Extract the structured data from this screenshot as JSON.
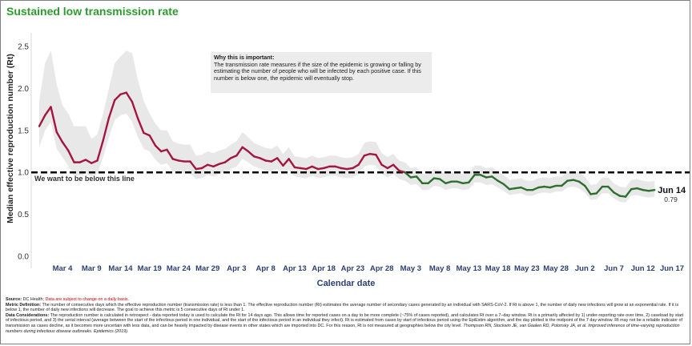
{
  "title": "Sustained low transmission rate",
  "callout": {
    "heading": "Why this is important:",
    "body": "The transmission rate measures if the size of the epidemic is growing or falling by estimating the number of people who will be infected by each positive case. If this number is below one, the epidemic will eventually stop."
  },
  "chart_data": {
    "type": "line",
    "title": "Sustained low transmission rate",
    "xlabel": "Calendar date",
    "ylabel": "Median effective reproduction number (Rt)",
    "ylim": [
      0,
      2.6
    ],
    "yticks": [
      "0.0",
      "0.5",
      "1.0",
      "1.5",
      "2.0",
      "2.5"
    ],
    "xticks": [
      "Mar 4",
      "Mar 9",
      "Mar 14",
      "Mar 19",
      "Mar 24",
      "Mar 29",
      "Apr 3",
      "Apr 8",
      "Apr 13",
      "Apr 18",
      "Apr 23",
      "Apr 28",
      "May 3",
      "May 8",
      "May 13",
      "May 18",
      "May 23",
      "May 28",
      "Jun 2",
      "Jun 7",
      "Jun 12",
      "Jun 17"
    ],
    "grid": false,
    "threshold": {
      "y": 1.0,
      "label": "We want to be below this line"
    },
    "end_annotation": {
      "date": "Jun 14",
      "value": "0.79"
    },
    "colors": {
      "above": "#a3163f",
      "below": "#2e6e2e",
      "band": "#e8e8e8",
      "threshold": "#000000"
    },
    "series": [
      {
        "x": [
          "Feb 29",
          "Mar 1",
          "Mar 2",
          "Mar 3",
          "Mar 4",
          "Mar 5",
          "Mar 6",
          "Mar 7",
          "Mar 8",
          "Mar 9",
          "Mar 10",
          "Mar 11",
          "Mar 12",
          "Mar 13",
          "Mar 14",
          "Mar 15",
          "Mar 16",
          "Mar 17",
          "Mar 18",
          "Mar 19",
          "Mar 20",
          "Mar 21",
          "Mar 22",
          "Mar 23",
          "Mar 24",
          "Mar 25",
          "Mar 26",
          "Mar 27",
          "Mar 28",
          "Mar 29",
          "Mar 30",
          "Mar 31",
          "Apr 1",
          "Apr 2",
          "Apr 3",
          "Apr 4",
          "Apr 5",
          "Apr 6",
          "Apr 7",
          "Apr 8",
          "Apr 9",
          "Apr 10",
          "Apr 11",
          "Apr 12",
          "Apr 13",
          "Apr 14",
          "Apr 15",
          "Apr 16",
          "Apr 17",
          "Apr 18",
          "Apr 19",
          "Apr 20",
          "Apr 21",
          "Apr 22",
          "Apr 23",
          "Apr 24",
          "Apr 25",
          "Apr 26",
          "Apr 27",
          "Apr 28",
          "Apr 29",
          "Apr 30",
          "May 1",
          "May 2",
          "May 3",
          "May 4",
          "May 5",
          "May 6",
          "May 7",
          "May 8",
          "May 9",
          "May 10",
          "May 11",
          "May 12",
          "May 13",
          "May 14",
          "May 15",
          "May 16",
          "May 17",
          "May 18",
          "May 19",
          "May 20",
          "May 21",
          "May 22",
          "May 23",
          "May 24",
          "May 25",
          "May 26",
          "May 27",
          "May 28",
          "May 29",
          "May 30",
          "May 31",
          "Jun 1",
          "Jun 2",
          "Jun 3",
          "Jun 4",
          "Jun 5",
          "Jun 6",
          "Jun 7",
          "Jun 8",
          "Jun 9",
          "Jun 10",
          "Jun 11",
          "Jun 12",
          "Jun 13",
          "Jun 14"
        ],
        "values": [
          1.55,
          1.68,
          1.78,
          1.48,
          1.36,
          1.26,
          1.12,
          1.12,
          1.15,
          1.11,
          1.14,
          1.38,
          1.65,
          1.86,
          1.93,
          1.95,
          1.84,
          1.64,
          1.47,
          1.44,
          1.32,
          1.25,
          1.27,
          1.16,
          1.14,
          1.13,
          1.13,
          1.04,
          1.05,
          1.09,
          1.07,
          1.1,
          1.12,
          1.17,
          1.2,
          1.3,
          1.25,
          1.19,
          1.17,
          1.14,
          1.13,
          1.17,
          1.08,
          1.16,
          1.06,
          1.05,
          1.04,
          1.07,
          1.04,
          1.05,
          1.07,
          1.07,
          1.05,
          1.04,
          1.05,
          1.09,
          1.2,
          1.22,
          1.21,
          1.09,
          1.05,
          1.09,
          1.02,
          1.0,
          0.94,
          0.95,
          0.87,
          0.87,
          0.93,
          0.92,
          0.87,
          0.89,
          0.89,
          0.87,
          0.88,
          0.97,
          0.97,
          0.94,
          0.95,
          0.9,
          0.86,
          0.8,
          0.81,
          0.82,
          0.79,
          0.79,
          0.82,
          0.83,
          0.82,
          0.84,
          0.84,
          0.9,
          0.91,
          0.89,
          0.84,
          0.74,
          0.75,
          0.83,
          0.83,
          0.76,
          0.72,
          0.71,
          0.8,
          0.81,
          0.79,
          0.78,
          0.79
        ],
        "lower": [
          1.3,
          1.5,
          1.6,
          1.28,
          1.18,
          1.08,
          0.96,
          0.96,
          0.99,
          0.95,
          0.98,
          1.18,
          1.42,
          1.62,
          1.68,
          1.7,
          1.6,
          1.42,
          1.28,
          1.25,
          1.15,
          1.09,
          1.11,
          1.01,
          1.0,
          0.99,
          0.99,
          0.92,
          0.93,
          0.97,
          0.95,
          0.98,
          1.0,
          1.04,
          1.07,
          1.16,
          1.12,
          1.07,
          1.05,
          1.02,
          1.01,
          1.04,
          0.97,
          1.03,
          0.95,
          0.94,
          0.93,
          0.96,
          0.93,
          0.94,
          0.96,
          0.96,
          0.94,
          0.93,
          0.94,
          0.98,
          1.07,
          1.09,
          1.08,
          0.98,
          0.94,
          0.98,
          0.92,
          0.9,
          0.85,
          0.86,
          0.79,
          0.79,
          0.84,
          0.83,
          0.79,
          0.81,
          0.81,
          0.79,
          0.8,
          0.88,
          0.88,
          0.85,
          0.86,
          0.82,
          0.78,
          0.73,
          0.74,
          0.75,
          0.72,
          0.72,
          0.75,
          0.76,
          0.75,
          0.77,
          0.77,
          0.82,
          0.83,
          0.81,
          0.76,
          0.67,
          0.68,
          0.75,
          0.75,
          0.69,
          0.65,
          0.64,
          0.72,
          0.73,
          0.71,
          0.7,
          0.71
        ],
        "upper": [
          1.85,
          2.3,
          2.45,
          2.05,
          1.8,
          1.7,
          1.55,
          1.55,
          1.55,
          1.4,
          1.45,
          1.7,
          2.0,
          2.3,
          2.38,
          2.45,
          2.42,
          2.1,
          1.85,
          1.7,
          1.58,
          1.5,
          1.5,
          1.37,
          1.34,
          1.33,
          1.33,
          1.2,
          1.21,
          1.25,
          1.23,
          1.26,
          1.28,
          1.33,
          1.37,
          1.48,
          1.42,
          1.35,
          1.32,
          1.29,
          1.28,
          1.32,
          1.22,
          1.3,
          1.19,
          1.18,
          1.17,
          1.2,
          1.17,
          1.18,
          1.2,
          1.2,
          1.18,
          1.17,
          1.18,
          1.22,
          1.35,
          1.37,
          1.36,
          1.23,
          1.18,
          1.22,
          1.14,
          1.12,
          1.05,
          1.06,
          0.98,
          0.98,
          1.04,
          1.03,
          0.98,
          1.0,
          1.0,
          0.98,
          0.99,
          1.08,
          1.08,
          1.05,
          1.06,
          1.01,
          0.97,
          0.91,
          0.92,
          0.93,
          0.9,
          0.9,
          0.93,
          0.94,
          0.93,
          0.95,
          0.95,
          1.01,
          1.02,
          1.0,
          0.95,
          0.85,
          0.86,
          0.94,
          0.94,
          0.87,
          0.83,
          0.82,
          0.91,
          0.92,
          0.9,
          0.89,
          0.9
        ]
      }
    ]
  },
  "footer": {
    "source_label": "Source:",
    "source_text": "DC Health;",
    "source_note": "Data are subject to change on a daily basis.",
    "metric_label": "Metric Definition:",
    "metric_text": "The number of consecutive days which the effective reproduction number (transmission rate) is less than 1. The effective reproduction number (Rt) estimates the average number of secondary cases generated by an individual with SARS-CoV-2. If Rt is above 1, the number of daily new infections will grow at an exponential rate. If it is below 1, the number of daily new infections will decrease. The goal to achieve this metric is 5 consecutive days of Rt under 1.",
    "data_label": "Data Considerations:",
    "data_text": "The reproduction number is calculated in retrospect - data reported today is used to calculate the Rt for 14 days ago. This allows time for reported cases on a day to be more complete (~75% of cases reported), and calculates Rt over a 7–day window. Rt is a primarily affected by 1) under-reporting rate over time, 2) caseload by start of infectious period, and 3) the serial interval (average between the start of the infectious period in one individual, and the start of the infectious period in an individual they infect). Rt is estimated from cases by start of infectious period using the EpiEstim algorithm, and the day plotted is the midpoint of the 7 day window. Rt may not be a reliable indicator of transmission as cases decline, as it becomes more uncertain with less data, and can be heavily impacted by disease events in other states which are imported into DC. For this reason, Rt is not measured at geographies below the city level.",
    "citation": "Thompson RN, Stockwin JE, van Gaalen RD, Polonsky JA, et al. Improved inference of time-varying reproduction numbers during infectious disease outbreaks. Epidemics (2019)."
  }
}
